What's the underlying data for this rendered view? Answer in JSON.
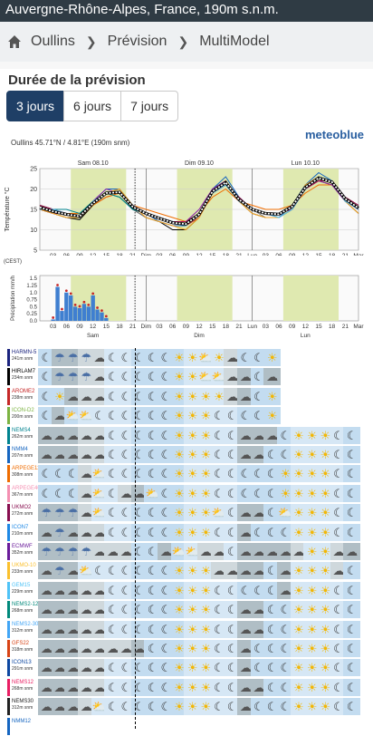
{
  "header": {
    "title": "Auvergne-Rhône-Alpes, France, 190m s.n.m."
  },
  "breadcrumb": {
    "home_icon": "home-icon",
    "items": [
      "Oullins",
      "Prévision",
      "MultiModel"
    ]
  },
  "duration": {
    "label": "Durée de la prévision",
    "options": [
      "3 jours",
      "6 jours",
      "7 jours"
    ],
    "selected": "3 jours"
  },
  "brand": {
    "logo": "meteoblue"
  },
  "location": {
    "text": "Oullins  45.71°N / 4.81°E (190m snm)"
  },
  "chart_data": [
    {
      "type": "line",
      "ylabel": "Température °C",
      "ylim": [
        5,
        25
      ],
      "yticks": [
        5,
        10,
        15,
        20,
        25
      ],
      "day_labels": [
        "Sam 08.10",
        "Dim 09.10",
        "Lun 10.10"
      ],
      "xticks": [
        "03",
        "06",
        "09",
        "12",
        "15",
        "18",
        "21",
        "Dim",
        "03",
        "06",
        "09",
        "12",
        "15",
        "18",
        "21",
        "Lun",
        "03",
        "06",
        "09",
        "12",
        "15",
        "18",
        "21",
        "Mar"
      ],
      "x_hours": [
        0,
        3,
        6,
        9,
        12,
        15,
        18,
        21,
        24,
        27,
        30,
        33,
        36,
        39,
        42,
        45,
        48,
        51,
        54,
        57,
        60,
        63,
        66,
        69,
        72
      ],
      "series": [
        {
          "values": [
            15,
            14,
            13,
            12.5,
            16,
            19,
            20,
            15,
            13,
            12,
            10,
            10,
            13,
            20,
            22,
            17,
            14,
            13,
            13,
            15,
            20,
            23,
            22,
            17,
            14
          ],
          "color": "#000000"
        },
        {
          "values": [
            15,
            14,
            13,
            13,
            16,
            19,
            19,
            15,
            13,
            12,
            11,
            11,
            14,
            20,
            22,
            17,
            15,
            13,
            13,
            15,
            21,
            23,
            22,
            17,
            15
          ],
          "color": "#777777"
        },
        {
          "values": [
            16,
            15,
            14,
            13,
            16,
            18,
            19,
            16,
            14,
            13,
            12,
            11,
            13,
            19,
            21,
            18,
            15,
            14,
            14,
            16,
            20,
            22,
            21,
            18,
            16
          ],
          "color": "#c62828"
        },
        {
          "values": [
            16,
            15,
            14,
            14,
            17,
            19,
            18,
            15,
            14,
            13,
            12,
            12,
            14,
            19,
            21,
            17,
            15,
            14,
            14,
            16,
            21,
            22,
            21,
            17,
            15
          ],
          "color": "#2e7d32"
        },
        {
          "values": [
            15,
            15,
            14,
            13,
            17,
            20,
            20,
            16,
            14,
            12,
            11,
            11,
            14,
            20,
            23,
            18,
            15,
            14,
            13,
            16,
            21,
            24,
            22,
            18,
            15
          ],
          "color": "#1565c0"
        },
        {
          "values": [
            16,
            15,
            14,
            14,
            16,
            18,
            19,
            16,
            15,
            14,
            13,
            12,
            14,
            18,
            20,
            17,
            16,
            15,
            15,
            16,
            19,
            21,
            21,
            18,
            16
          ],
          "color": "#ef6c00"
        },
        {
          "values": [
            15,
            14,
            14,
            13,
            17,
            20,
            19,
            16,
            14,
            13,
            12,
            12,
            15,
            20,
            22,
            17,
            15,
            14,
            14,
            15,
            20,
            22,
            21,
            17,
            15
          ],
          "color": "#8e24aa"
        },
        {
          "values": [
            16,
            15,
            15,
            14,
            17,
            19,
            18,
            15,
            14,
            13,
            12,
            12,
            14,
            19,
            21,
            18,
            15,
            14,
            14,
            16,
            20,
            23,
            22,
            18,
            16
          ],
          "color": "#00838f"
        },
        {
          "values": [
            15,
            14,
            13,
            13,
            16,
            19,
            20,
            16,
            13,
            12,
            11,
            10,
            13,
            19,
            22,
            17,
            14,
            13,
            13,
            15,
            21,
            23,
            22,
            17,
            14
          ],
          "color": "#f9a825"
        },
        {
          "values": [
            16,
            15,
            14,
            13,
            17,
            19,
            19,
            16,
            14,
            13,
            12,
            12,
            14,
            19,
            21,
            18,
            15,
            14,
            14,
            16,
            20,
            22,
            22,
            18,
            16
          ],
          "color": "#ad1457"
        },
        {
          "values": [
            15,
            15,
            14,
            13,
            17,
            19,
            19,
            16,
            14,
            13,
            12,
            11,
            14,
            19,
            21,
            17,
            15,
            14,
            13,
            15,
            20,
            23,
            22,
            17,
            15
          ],
          "color": "#4fc3f7"
        }
      ],
      "mean": {
        "values": [
          15.5,
          14.5,
          13.8,
          13.3,
          16.5,
          19,
          19.2,
          15.6,
          14,
          12.8,
          11.7,
          11.4,
          13.8,
          19.4,
          21.6,
          17.4,
          15,
          14,
          13.8,
          15.7,
          20.4,
          22.7,
          21.7,
          17.6,
          15.3
        ],
        "color": "#ffffff"
      }
    },
    {
      "type": "bar",
      "ylabel": "Précipitation mm/h",
      "yticks": [
        0,
        0.25,
        0.5,
        0.75,
        1.0,
        1.25,
        1.5
      ],
      "ylim": [
        0,
        1.6
      ],
      "tz_label": "(CEST)",
      "day_labels": [
        "Sam",
        "Dim",
        "Lun"
      ],
      "xticks": [
        "03",
        "06",
        "09",
        "12",
        "15",
        "18",
        "21",
        "Dim",
        "03",
        "06",
        "09",
        "12",
        "15",
        "18",
        "21",
        "Lun",
        "03",
        "06",
        "09",
        "12",
        "15",
        "18",
        "21",
        "Mar"
      ],
      "hours": [
        3,
        4,
        5,
        6,
        7,
        8,
        9,
        10,
        11,
        12,
        13,
        14,
        15
      ],
      "values": [
        0.05,
        1.2,
        0.35,
        1.0,
        0.9,
        0.5,
        0.45,
        0.6,
        0.5,
        0.9,
        0.4,
        0.3,
        0.1
      ]
    }
  ],
  "models": [
    {
      "name": "HARMN-5",
      "height": "241m snm",
      "color": "#1a237e",
      "icons": [
        "moon",
        "cloud-rain",
        "cloud-rain",
        "cloud-rain",
        "cloud",
        "moon",
        "moon",
        "moon",
        "moon",
        "moon",
        "sun",
        "sun",
        "cloud-sun",
        "sun",
        "cloud",
        "moon",
        "moon",
        "sun"
      ]
    },
    {
      "name": "HIRLAM7",
      "height": "234m snm",
      "color": "#000000",
      "icons": [
        "moon",
        "cloud-rain",
        "cloud-rain",
        "cloud-rain",
        "cloud",
        "moon",
        "moon",
        "moon",
        "moon",
        "moon",
        "sun",
        "sun",
        "cloud-sun",
        "cloud-sun",
        "cloud",
        "cloud",
        "moon",
        "cloud"
      ]
    },
    {
      "name": "AROME2",
      "height": "238m snm",
      "color": "#c62828",
      "icons": [
        "moon",
        "sun",
        "cloud",
        "cloud",
        "cloud",
        "moon",
        "moon",
        "moon",
        "moon",
        "moon",
        "sun",
        "sun",
        "sun",
        "sun",
        "cloud",
        "cloud",
        "moon",
        "sun"
      ]
    },
    {
      "name": "ICON-D2",
      "height": "200m snm",
      "color": "#7cb342",
      "icons": [
        "moon",
        "cloud",
        "cloud-sun",
        "cloud-sun",
        "moon",
        "moon",
        "moon",
        "moon",
        "moon",
        "moon",
        "sun",
        "sun",
        "sun",
        "moon",
        "moon",
        "moon",
        "moon",
        "sun"
      ]
    },
    {
      "name": "NEMS4",
      "height": "262m snm",
      "color": "#00838f",
      "icons": [
        "cloud",
        "cloud",
        "cloud",
        "cloud",
        "cloud",
        "moon",
        "moon",
        "moon",
        "moon",
        "moon",
        "sun",
        "sun",
        "sun",
        "moon",
        "moon",
        "cloud",
        "cloud",
        "cloud",
        "moon",
        "sun",
        "sun",
        "sun",
        "moon",
        "moon"
      ]
    },
    {
      "name": "NMM4",
      "height": "207m snm",
      "color": "#1565c0",
      "icons": [
        "cloud",
        "cloud",
        "cloud",
        "cloud",
        "cloud",
        "moon",
        "moon",
        "moon",
        "moon",
        "moon",
        "sun",
        "sun",
        "sun",
        "moon",
        "moon",
        "cloud",
        "cloud",
        "moon",
        "moon",
        "sun",
        "sun",
        "sun",
        "moon",
        "moon"
      ]
    },
    {
      "name": "ARPEGE11",
      "height": "308m snm",
      "color": "#ef6c00",
      "icons": [
        "moon",
        "moon",
        "moon",
        "cloud",
        "cloud-sun",
        "moon",
        "moon",
        "moon",
        "moon",
        "moon",
        "sun",
        "sun",
        "sun",
        "moon",
        "moon",
        "moon",
        "moon",
        "moon",
        "sun",
        "sun",
        "sun",
        "sun",
        "moon",
        "moon"
      ]
    },
    {
      "name": "ARPEGE40",
      "height": "367m snm",
      "color": "#f48fb1",
      "icons": [
        "moon",
        "moon",
        "moon",
        "cloud",
        "cloud-sun",
        "moon",
        "cloud",
        "cloud",
        "cloud-sun",
        "moon",
        "sun",
        "sun",
        "sun",
        "moon",
        "moon",
        "moon",
        "moon",
        "moon",
        "sun",
        "sun",
        "sun",
        "sun",
        "moon",
        "moon"
      ]
    },
    {
      "name": "UKMO2",
      "height": "272m snm",
      "color": "#880e4f",
      "icons": [
        "cloud-rain",
        "cloud-rain",
        "cloud-rain",
        "cloud",
        "cloud-sun",
        "moon",
        "moon",
        "moon",
        "moon",
        "moon",
        "sun",
        "sun",
        "sun",
        "cloud-sun",
        "moon",
        "cloud",
        "cloud",
        "moon",
        "cloud-sun",
        "sun",
        "sun",
        "sun",
        "moon",
        "moon"
      ]
    },
    {
      "name": "ICON7",
      "height": "210m snm",
      "color": "#1e88e5",
      "icons": [
        "cloud",
        "cloud-rain",
        "cloud",
        "cloud",
        "cloud",
        "moon",
        "moon",
        "moon",
        "moon",
        "moon",
        "sun",
        "sun",
        "sun",
        "moon",
        "moon",
        "cloud",
        "moon",
        "moon",
        "moon",
        "sun",
        "sun",
        "sun",
        "moon",
        "moon"
      ]
    },
    {
      "name": "ECMWF",
      "height": "352m snm",
      "color": "#6a1b9a",
      "icons": [
        "cloud-rain",
        "cloud-rain",
        "cloud-rain",
        "cloud-rain",
        "cloud",
        "cloud",
        "cloud",
        "moon",
        "moon",
        "cloud",
        "cloud-sun",
        "cloud-sun",
        "cloud",
        "cloud",
        "moon",
        "cloud",
        "cloud",
        "cloud",
        "cloud",
        "cloud",
        "sun",
        "sun",
        "cloud",
        "cloud"
      ]
    },
    {
      "name": "UKMO-10",
      "height": "233m snm",
      "color": "#fbc02d",
      "icons": [
        "cloud",
        "cloud-rain",
        "cloud",
        "cloud-sun",
        "moon",
        "moon",
        "moon",
        "moon",
        "moon",
        "moon",
        "sun",
        "sun",
        "sun",
        "cloud",
        "cloud",
        "cloud",
        "cloud",
        "moon",
        "cloud",
        "sun",
        "sun",
        "sun",
        "cloud",
        "moon"
      ]
    },
    {
      "name": "GEM15",
      "height": "229m snm",
      "color": "#4fc3f7",
      "icons": [
        "cloud",
        "cloud",
        "cloud",
        "cloud",
        "cloud",
        "moon",
        "moon",
        "moon",
        "moon",
        "moon",
        "sun",
        "sun",
        "sun",
        "moon",
        "moon",
        "moon",
        "moon",
        "moon",
        "cloud",
        "sun",
        "sun",
        "sun",
        "moon",
        "moon"
      ]
    },
    {
      "name": "NEMS2-12",
      "height": "268m snm",
      "color": "#00897b",
      "icons": [
        "cloud",
        "cloud",
        "cloud",
        "cloud",
        "cloud",
        "moon",
        "moon",
        "moon",
        "moon",
        "moon",
        "sun",
        "sun",
        "sun",
        "moon",
        "moon",
        "cloud",
        "cloud",
        "moon",
        "moon",
        "sun",
        "sun",
        "sun",
        "moon",
        "moon"
      ]
    },
    {
      "name": "NEMS2-30",
      "height": "312m snm",
      "color": "#42a5f5",
      "icons": [
        "cloud",
        "cloud",
        "cloud",
        "cloud",
        "cloud",
        "moon",
        "moon",
        "moon",
        "moon",
        "moon",
        "sun",
        "sun",
        "sun",
        "moon",
        "moon",
        "cloud",
        "cloud",
        "moon",
        "moon",
        "sun",
        "sun",
        "sun",
        "moon",
        "moon"
      ]
    },
    {
      "name": "GFS22",
      "height": "318m snm",
      "color": "#d84315",
      "icons": [
        "cloud",
        "cloud",
        "cloud",
        "cloud",
        "cloud",
        "cloud",
        "cloud",
        "cloud",
        "moon",
        "moon",
        "sun",
        "sun",
        "sun",
        "moon",
        "moon",
        "cloud",
        "moon",
        "moon",
        "moon",
        "sun",
        "sun",
        "sun",
        "moon",
        "moon"
      ]
    },
    {
      "name": "ICON13",
      "height": "291m snm",
      "color": "#0d47a1",
      "icons": [
        "cloud",
        "cloud",
        "cloud",
        "cloud",
        "cloud",
        "moon",
        "moon",
        "moon",
        "moon",
        "moon",
        "sun",
        "sun",
        "sun",
        "moon",
        "moon",
        "cloud",
        "moon",
        "moon",
        "moon",
        "sun",
        "sun",
        "sun",
        "moon",
        "moon"
      ]
    },
    {
      "name": "NEMS12",
      "height": "268m snm",
      "color": "#e91e63",
      "icons": [
        "cloud",
        "cloud",
        "cloud",
        "cloud",
        "cloud",
        "moon",
        "moon",
        "moon",
        "moon",
        "moon",
        "sun",
        "sun",
        "sun",
        "moon",
        "moon",
        "cloud",
        "cloud",
        "moon",
        "moon",
        "sun",
        "sun",
        "sun",
        "moon",
        "moon"
      ]
    },
    {
      "name": "NEMS30",
      "height": "312m snm",
      "color": "#212121",
      "icons": [
        "cloud",
        "cloud",
        "cloud",
        "cloud",
        "cloud-sun",
        "moon",
        "moon",
        "moon",
        "moon",
        "moon",
        "sun",
        "sun",
        "sun",
        "moon",
        "moon",
        "cloud",
        "moon",
        "moon",
        "moon",
        "sun",
        "sun",
        "sun",
        "moon",
        "moon"
      ]
    },
    {
      "name": "NMM12",
      "height": "",
      "color": "#1565c0",
      "icons": []
    }
  ]
}
